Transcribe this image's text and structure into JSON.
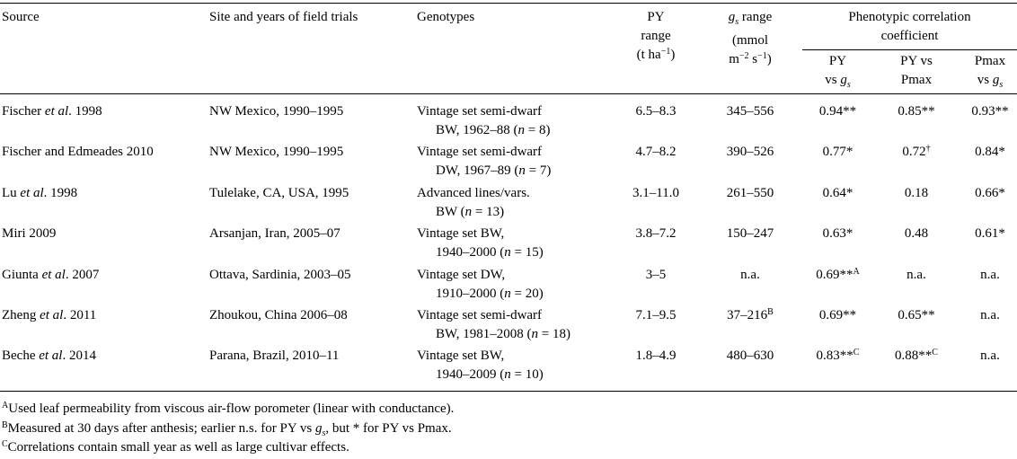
{
  "headers": {
    "source": "Source",
    "site": "Site and years of field trials",
    "genotypes": "Genotypes",
    "py_range": [
      "PY",
      "range",
      "(t ha",
      "−1",
      ")"
    ],
    "gs_range": [
      "g",
      "s",
      " range",
      "(mmol",
      "m",
      "−2",
      " s",
      "−1",
      ")"
    ],
    "pheno_group": [
      "Phenotypic correlation",
      "coefficient"
    ],
    "pheno_cols": [
      [
        "PY",
        "vs g",
        "s"
      ],
      [
        "PY vs",
        "Pmax"
      ],
      [
        "Pmax",
        "vs g",
        "s"
      ]
    ]
  },
  "rows": [
    {
      "source": [
        "Fischer ",
        "et al",
        ". 1998"
      ],
      "site": "NW Mexico, 1990–1995",
      "genotype": [
        "Vintage set semi-dwarf",
        "BW, 1962–88 (",
        "n",
        " = 8)"
      ],
      "py": "6.5–8.3",
      "gs": "345–556",
      "gs_sup": "",
      "c1": "0.94**",
      "c1_sup": "",
      "c2": "0.85**",
      "c2_sup": "",
      "c3": "0.93**"
    },
    {
      "source": [
        "Fischer and Edmeades 2010",
        "",
        ""
      ],
      "site": "NW Mexico, 1990–1995",
      "genotype": [
        "Vintage set semi-dwarf",
        "DW, 1967–89 (",
        "n",
        " = 7)"
      ],
      "py": "4.7–8.2",
      "gs": "390–526",
      "gs_sup": "",
      "c1": "0.77*",
      "c1_sup": "",
      "c2": "0.72",
      "c2_sup": "†",
      "c3": "0.84*"
    },
    {
      "source": [
        "Lu ",
        "et al",
        ". 1998"
      ],
      "site": "Tulelake, CA, USA, 1995",
      "genotype": [
        "Advanced lines/vars.",
        "BW (",
        "n",
        " = 13)"
      ],
      "py": "3.1–11.0",
      "gs": "261–550",
      "gs_sup": "",
      "c1": "0.64*",
      "c1_sup": "",
      "c2": "0.18",
      "c2_sup": "",
      "c3": "0.66*"
    },
    {
      "source": [
        "Miri 2009",
        "",
        ""
      ],
      "site": "Arsanjan, Iran, 2005–07",
      "genotype": [
        "Vintage set BW,",
        "1940–2000 (",
        "n",
        " = 15)"
      ],
      "py": "3.8–7.2",
      "gs": "150–247",
      "gs_sup": "",
      "c1": "0.63*",
      "c1_sup": "",
      "c2": "0.48",
      "c2_sup": "",
      "c3": "0.61*"
    },
    {
      "source": [
        "Giunta ",
        "et al",
        ". 2007"
      ],
      "site": "Ottava, Sardinia, 2003–05",
      "genotype": [
        "Vintage set DW,",
        "1910–2000 (",
        "n",
        " = 20)"
      ],
      "py": "3–5",
      "gs": "n.a.",
      "gs_sup": "",
      "c1": "0.69**",
      "c1_sup": "A",
      "c2": "n.a.",
      "c2_sup": "",
      "c3": "n.a."
    },
    {
      "source": [
        "Zheng ",
        "et al",
        ". 2011"
      ],
      "site": "Zhoukou, China 2006–08",
      "genotype": [
        "Vintage set semi-dwarf",
        "BW, 1981–2008 (",
        "n",
        " = 18)"
      ],
      "py": "7.1–9.5",
      "gs": "37–216",
      "gs_sup": "B",
      "c1": "0.69**",
      "c1_sup": "",
      "c2": "0.65**",
      "c2_sup": "",
      "c3": "n.a."
    },
    {
      "source": [
        "Beche ",
        "et al",
        ". 2014"
      ],
      "site": "Parana, Brazil, 2010–11",
      "genotype": [
        "Vintage set BW,",
        "1940–2009 (",
        "n",
        " = 10)"
      ],
      "py": "1.8–4.9",
      "gs": "480–630",
      "gs_sup": "",
      "c1": "0.83**",
      "c1_sup": "C",
      "c2": "0.88**",
      "c2_sup": "C",
      "c3": "n.a."
    }
  ],
  "footnotes": [
    {
      "mark": "A",
      "text": "Used leaf permeability from viscous air-flow porometer (linear with conductance)."
    },
    {
      "mark": "B",
      "text": "Measured at 30 days after anthesis; earlier n.s. for PY vs ",
      "gs_g": "g",
      "gs_s": "s",
      "tail": ", but * for PY vs Pmax."
    },
    {
      "mark": "C",
      "text": "Correlations contain small year as well as large cultivar effects."
    }
  ]
}
